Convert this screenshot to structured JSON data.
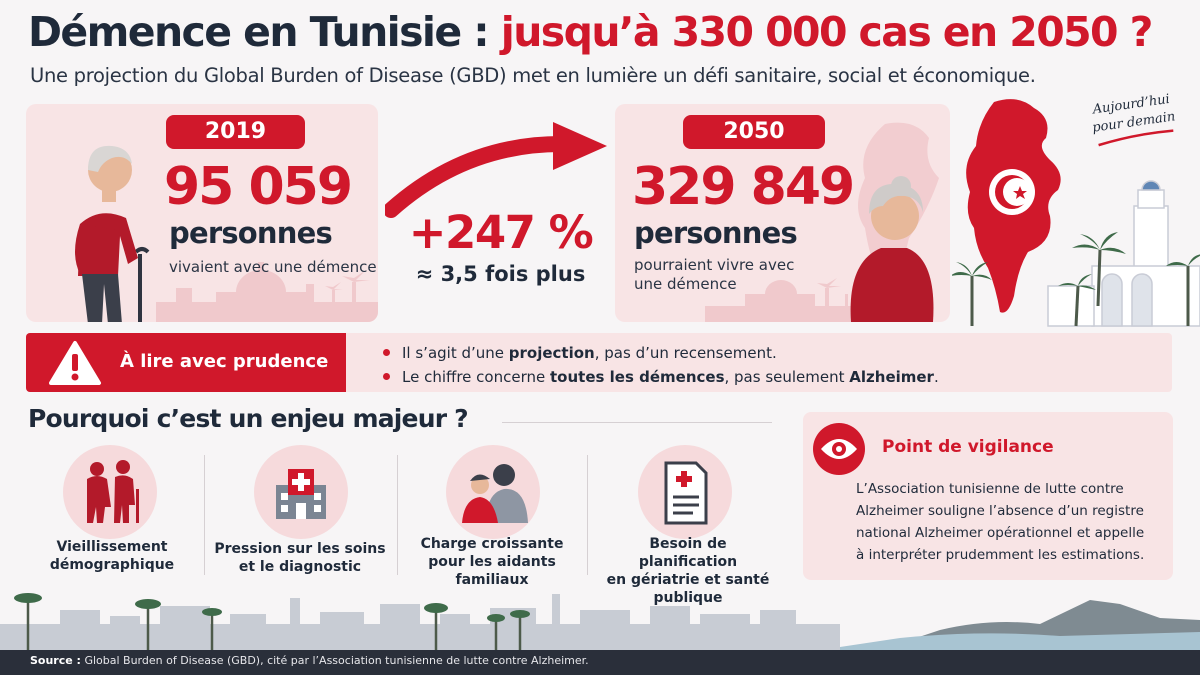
{
  "header": {
    "title_main": "Démence en Tunisie :",
    "title_accent": "jusqu’à 330 000 cas en 2050 ?",
    "subtitle": "Une projection du Global Burden of Disease (GBD) met en lumière un défi sanitaire, social et économique."
  },
  "card_2019": {
    "year": "2019",
    "number": "95 059",
    "unit": "personnes",
    "caption": "vivaient avec une démence"
  },
  "growth": {
    "percent": "+247 %",
    "multiplier": "≈ 3,5 fois plus"
  },
  "card_2050": {
    "year": "2050",
    "number": "329 849",
    "unit": "personnes",
    "caption_line1": "pourraient vivre avec",
    "caption_line2": "une démence"
  },
  "tagline": {
    "line1": "Aujourd’hui",
    "line2": "pour demain"
  },
  "caution": {
    "label": "À lire avec prudence",
    "bullet1_pre": "Il s’agit d’une ",
    "bullet1_bold": "projection",
    "bullet1_post": ", pas d’un recensement.",
    "bullet2_pre": "Le chiffre concerne ",
    "bullet2_bold1": "toutes les démences",
    "bullet2_mid": ", pas seulement ",
    "bullet2_bold2": "Alzheimer",
    "bullet2_post": "."
  },
  "section": {
    "title": "Pourquoi c’est un enjeu majeur ?",
    "items": [
      {
        "line1": "Vieillissement",
        "line2": "démographique",
        "line3": ""
      },
      {
        "line1": "Pression sur les soins",
        "line2": "et le diagnostic",
        "line3": ""
      },
      {
        "line1": "Charge croissante",
        "line2": "pour les aidants",
        "line3": "familiaux"
      },
      {
        "line1": "Besoin de planification",
        "line2": "en gériatrie et santé",
        "line3": "publique"
      }
    ]
  },
  "vigilance": {
    "title": "Point de vigilance",
    "line1": "L’Association tunisienne de lutte contre",
    "line2": "Alzheimer souligne l’absence d’un registre",
    "line3": "national Alzheimer opérationnel et appelle",
    "line4": "à interpréter prudemment les estimations."
  },
  "footer": {
    "label": "Source :",
    "text": " Global Burden of Disease (GBD), cité par l’Association tunisienne de lutte contre Alzheimer."
  },
  "colors": {
    "accent": "#d0182b",
    "navy": "#1f2a3a",
    "card": "#f8e4e5"
  }
}
